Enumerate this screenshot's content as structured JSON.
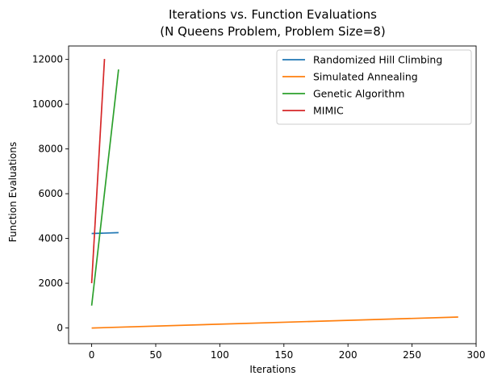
{
  "chart_data": {
    "type": "line",
    "title": "Iterations vs. Function Evaluations",
    "subtitle": "(N Queens Problem, Problem Size=8)",
    "xlabel": "Iterations",
    "ylabel": "Function Evaluations",
    "xlim": [
      -18,
      300
    ],
    "ylim": [
      -700,
      12600
    ],
    "xticks": [
      0,
      50,
      100,
      150,
      200,
      250,
      300
    ],
    "yticks": [
      0,
      2000,
      4000,
      6000,
      8000,
      10000,
      12000
    ],
    "grid": false,
    "legend_position": "top-right",
    "series": [
      {
        "name": "Randomized Hill Climbing",
        "color": "#1f77b4",
        "x": [
          0,
          21
        ],
        "y": [
          4220,
          4260
        ]
      },
      {
        "name": "Simulated Annealing",
        "color": "#ff7f0e",
        "x": [
          0,
          286
        ],
        "y": [
          0,
          490
        ]
      },
      {
        "name": "Genetic Algorithm",
        "color": "#2ca02c",
        "x": [
          0,
          21
        ],
        "y": [
          1000,
          11550
        ]
      },
      {
        "name": "MIMIC",
        "color": "#d62728",
        "x": [
          0,
          10
        ],
        "y": [
          2000,
          12020
        ]
      }
    ]
  }
}
